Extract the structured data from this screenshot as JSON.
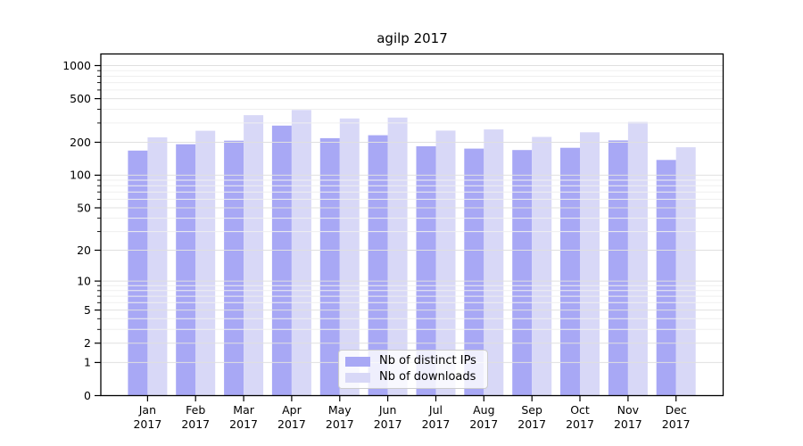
{
  "chart_data": {
    "type": "bar",
    "title": "agilp 2017",
    "categories": [
      "Jan",
      "Feb",
      "Mar",
      "Apr",
      "May",
      "Jun",
      "Jul",
      "Aug",
      "Sep",
      "Oct",
      "Nov",
      "Dec"
    ],
    "category_year_label": "2017",
    "series": [
      {
        "name": "Nb of distinct IPs",
        "color": "#a8a8f5",
        "values": [
          168,
          192,
          207,
          284,
          218,
          232,
          184,
          175,
          170,
          178,
          208,
          138
        ]
      },
      {
        "name": "Nb of downloads",
        "color": "#d8d8f7",
        "values": [
          222,
          255,
          354,
          394,
          330,
          336,
          256,
          262,
          224,
          247,
          307,
          180
        ]
      }
    ],
    "y_axis": {
      "scale": "log10(1+v)",
      "ylim": [
        0,
        1000
      ],
      "ticks": [
        0,
        1,
        2,
        5,
        10,
        20,
        50,
        100,
        200,
        500,
        1000
      ],
      "minor_ticks": [
        3,
        4,
        6,
        7,
        8,
        9,
        30,
        40,
        60,
        70,
        80,
        90,
        300,
        400,
        600,
        700,
        800,
        900
      ]
    },
    "x_axis": {
      "label_line2": "2017"
    },
    "grid": true,
    "legend_position": "lower-center",
    "colors": {
      "frame": "#000000",
      "major_grid": "#e0e0e0",
      "minor_grid": "#efefef",
      "text": "#000000"
    }
  }
}
